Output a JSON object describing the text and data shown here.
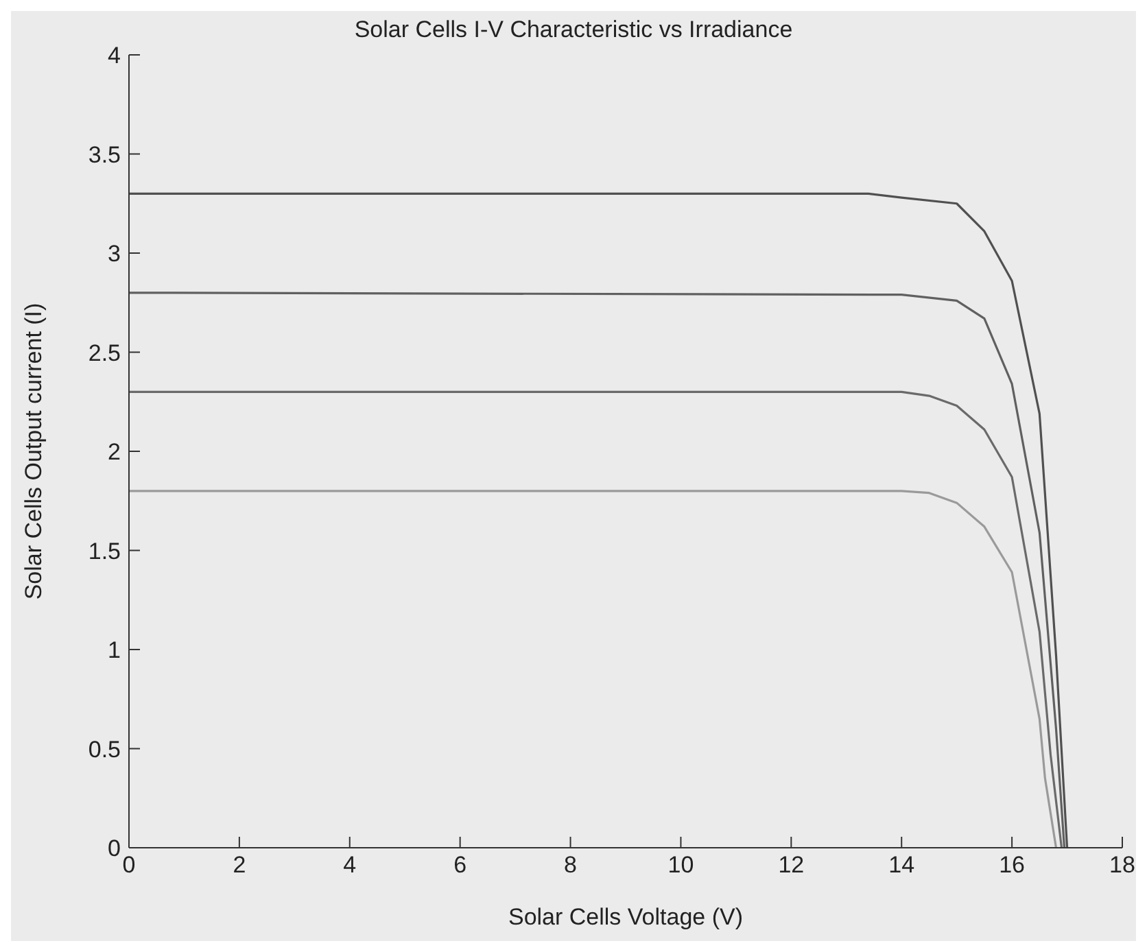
{
  "chart_data": {
    "type": "line",
    "title": "Solar Cells I-V Characteristic vs Irradiance",
    "xlabel": "Solar Cells Voltage (V)",
    "ylabel": "Solar Cells Output current (I)",
    "xlim": [
      0,
      18
    ],
    "xticks": [
      0,
      2,
      4,
      6,
      8,
      10,
      12,
      14,
      16,
      18
    ],
    "ylim": [
      0,
      4
    ],
    "yticks": [
      0,
      0.5,
      1,
      1.5,
      2,
      2.5,
      3,
      3.5,
      4
    ],
    "grid": false,
    "marker": "none",
    "line_style": "solid",
    "series": [
      {
        "color": "#505050",
        "x": [
          0,
          13.4,
          14,
          15,
          15.5,
          16,
          16.5,
          16.8,
          17.0
        ],
        "values": [
          3.3,
          3.3,
          3.28,
          3.25,
          3.11,
          2.86,
          2.19,
          0.97,
          0
        ]
      },
      {
        "color": "#606060",
        "x": [
          0,
          14,
          15,
          15.5,
          16,
          16.5,
          16.8,
          16.95
        ],
        "values": [
          2.8,
          2.79,
          2.76,
          2.67,
          2.34,
          1.59,
          0.6,
          0
        ]
      },
      {
        "color": "#6a6a6a",
        "x": [
          0,
          14,
          14.5,
          15,
          15.5,
          16,
          16.5,
          16.7,
          16.9
        ],
        "values": [
          2.3,
          2.3,
          2.28,
          2.23,
          2.11,
          1.87,
          1.09,
          0.47,
          0
        ]
      },
      {
        "color": "#9a9a9a",
        "x": [
          0,
          14,
          14.5,
          15,
          15.5,
          16,
          16.5,
          16.6,
          16.8
        ],
        "values": [
          1.8,
          1.8,
          1.79,
          1.74,
          1.62,
          1.39,
          0.65,
          0.35,
          0
        ]
      }
    ]
  }
}
